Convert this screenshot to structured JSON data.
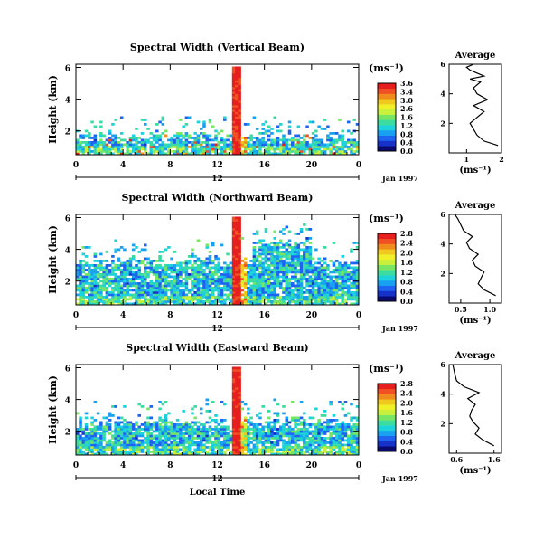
{
  "colorbar_unit": "(ms⁻¹)",
  "colormap": [
    "#0a0a6e",
    "#1632c8",
    "#1e64f0",
    "#19a0f0",
    "#1ed2dc",
    "#3cdca0",
    "#78e664",
    "#c8f03c",
    "#f0f028",
    "#f0c81e",
    "#f08c1e",
    "#f05023",
    "#e61e1e"
  ],
  "date_label": "Jan 1997",
  "xlabel": "Local Time",
  "panels": [
    {
      "title": "Spectral Width (Vertical Beam)",
      "ylabel": "Height (km)",
      "yticks": [
        "6",
        "4",
        "2"
      ],
      "xticks": [
        "0",
        "4",
        "8",
        "12",
        "16",
        "20",
        "0"
      ],
      "day_label": "12",
      "colorbar_ticks": [
        "3.6",
        "3.4",
        "3.0",
        "2.6",
        "1.6",
        "1.2",
        "0.8",
        "0.4",
        "0.0"
      ],
      "average": {
        "title": "Average",
        "xlabel": "(ms⁻¹)",
        "xticks": [
          "1",
          "2"
        ],
        "yticks": [
          "6",
          "4",
          "2"
        ]
      }
    },
    {
      "title": "Spectral Width (Northward Beam)",
      "ylabel": "Height (km)",
      "yticks": [
        "6",
        "4",
        "2"
      ],
      "xticks": [
        "0",
        "4",
        "8",
        "12",
        "16",
        "20",
        "0"
      ],
      "day_label": "12",
      "colorbar_ticks": [
        "2.8",
        "2.4",
        "2.0",
        "1.6",
        "1.2",
        "0.8",
        "0.4",
        "0.0"
      ],
      "average": {
        "title": "Average",
        "xlabel": "(ms⁻¹)",
        "xticks": [
          "0.5",
          "1.0"
        ],
        "yticks": [
          "6",
          "4",
          "2"
        ]
      }
    },
    {
      "title": "Spectral Width (Eastward Beam)",
      "ylabel": "Height (km)",
      "yticks": [
        "6",
        "4",
        "2"
      ],
      "xticks": [
        "0",
        "4",
        "8",
        "12",
        "16",
        "20",
        "0"
      ],
      "day_label": "12",
      "colorbar_ticks": [
        "2.8",
        "2.4",
        "2.0",
        "1.6",
        "1.2",
        "0.8",
        "0.4",
        "0.0"
      ],
      "average": {
        "title": "Average",
        "xlabel": "(ms⁻¹)",
        "xticks": [
          "0.6",
          "1.6"
        ],
        "yticks": [
          "6",
          "4",
          "2"
        ]
      }
    }
  ],
  "chart_data": [
    {
      "type": "heatmap",
      "title": "Spectral Width (Vertical Beam)",
      "xlabel": "Local Time",
      "ylabel": "Height (km)",
      "xlim": [
        0,
        24
      ],
      "ylim": [
        0.5,
        6.2
      ],
      "zlim": [
        0,
        3.6
      ],
      "zlabel": "(ms⁻¹)",
      "features": [
        {
          "desc": "high-width column",
          "x_range": [
            13.2,
            13.9
          ],
          "y_range": [
            0.5,
            6.0
          ],
          "value": 3.6
        },
        {
          "desc": "low-level layer",
          "x_range": [
            0,
            24
          ],
          "y_range": [
            0.5,
            1.6
          ],
          "value": 0.6
        }
      ]
    },
    {
      "type": "heatmap",
      "title": "Spectral Width (Northward Beam)",
      "xlabel": "Local Time",
      "ylabel": "Height (km)",
      "xlim": [
        0,
        24
      ],
      "ylim": [
        0.5,
        6.2
      ],
      "zlim": [
        0,
        2.8
      ],
      "zlabel": "(ms⁻¹)",
      "features": [
        {
          "desc": "high-width column",
          "x_range": [
            13.2,
            13.9
          ],
          "y_range": [
            0.5,
            6.0
          ],
          "value": 2.8
        },
        {
          "desc": "layer",
          "x_range": [
            0,
            24
          ],
          "y_range": [
            0.5,
            3.2
          ],
          "value": 0.5
        }
      ]
    },
    {
      "type": "heatmap",
      "title": "Spectral Width (Eastward Beam)",
      "xlabel": "Local Time",
      "ylabel": "Height (km)",
      "xlim": [
        0,
        24
      ],
      "ylim": [
        0.5,
        6.2
      ],
      "zlim": [
        0,
        2.8
      ],
      "zlabel": "(ms⁻¹)",
      "features": [
        {
          "desc": "high-width column",
          "x_range": [
            13.2,
            13.9
          ],
          "y_range": [
            0.5,
            6.0
          ],
          "value": 2.8
        },
        {
          "desc": "layer",
          "x_range": [
            0,
            24
          ],
          "y_range": [
            0.5,
            2.6
          ],
          "value": 0.8
        }
      ]
    },
    {
      "type": "line",
      "title": "Average",
      "xlabel": "(ms⁻¹)",
      "xlim": [
        0.5,
        2.0
      ],
      "ylim": [
        0,
        6
      ],
      "x": [
        1.9,
        1.5,
        1.3,
        1.2,
        1.1,
        1.3,
        1.5,
        1.2,
        1.6,
        1.3,
        1.2,
        1.4,
        1.1,
        1.5,
        1.3,
        1.1,
        1.0,
        1.2
      ],
      "y": [
        0.5,
        0.8,
        1.2,
        1.6,
        2.0,
        2.4,
        2.8,
        3.2,
        3.6,
        4.0,
        4.4,
        4.8,
        5.0,
        5.2,
        5.4,
        5.6,
        5.8,
        6.0
      ]
    },
    {
      "type": "line",
      "title": "Average",
      "xlabel": "(ms⁻¹)",
      "xlim": [
        0.3,
        1.2
      ],
      "ylim": [
        0,
        6
      ],
      "x": [
        1.1,
        0.9,
        0.8,
        0.85,
        0.9,
        0.75,
        0.7,
        0.8,
        0.65,
        0.6,
        0.7,
        0.55,
        0.5,
        0.45,
        0.4
      ],
      "y": [
        0.5,
        0.9,
        1.3,
        1.7,
        2.1,
        2.5,
        2.9,
        3.3,
        3.7,
        4.1,
        4.5,
        4.9,
        5.3,
        5.7,
        6.0
      ]
    },
    {
      "type": "line",
      "title": "Average",
      "xlabel": "(ms⁻¹)",
      "xlim": [
        0.4,
        1.8
      ],
      "ylim": [
        0,
        6
      ],
      "x": [
        1.6,
        1.3,
        1.1,
        1.2,
        1.05,
        0.95,
        1.0,
        1.1,
        0.9,
        1.2,
        0.8,
        0.6,
        0.55,
        0.5
      ],
      "y": [
        0.5,
        0.9,
        1.3,
        1.7,
        2.1,
        2.5,
        2.9,
        3.3,
        3.7,
        4.1,
        4.5,
        4.9,
        5.4,
        6.0
      ]
    }
  ]
}
